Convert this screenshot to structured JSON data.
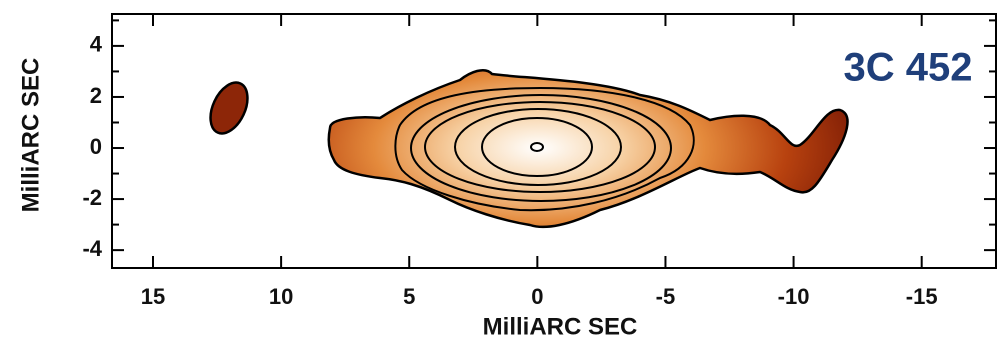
{
  "chart_data": {
    "type": "contour",
    "title": "3C 452",
    "x_label": "MilliARC SEC",
    "y_label": "MilliARC SEC",
    "xlim": [
      16.6,
      -17.9
    ],
    "ylim": [
      -4.7,
      5.25
    ],
    "xticks": [
      15,
      10,
      5,
      0,
      -5,
      -10,
      -15
    ],
    "yticks": [
      4,
      2,
      0,
      -2,
      -4
    ],
    "yminor_ticks": [
      5,
      3,
      1,
      -1,
      -3
    ]
  }
}
